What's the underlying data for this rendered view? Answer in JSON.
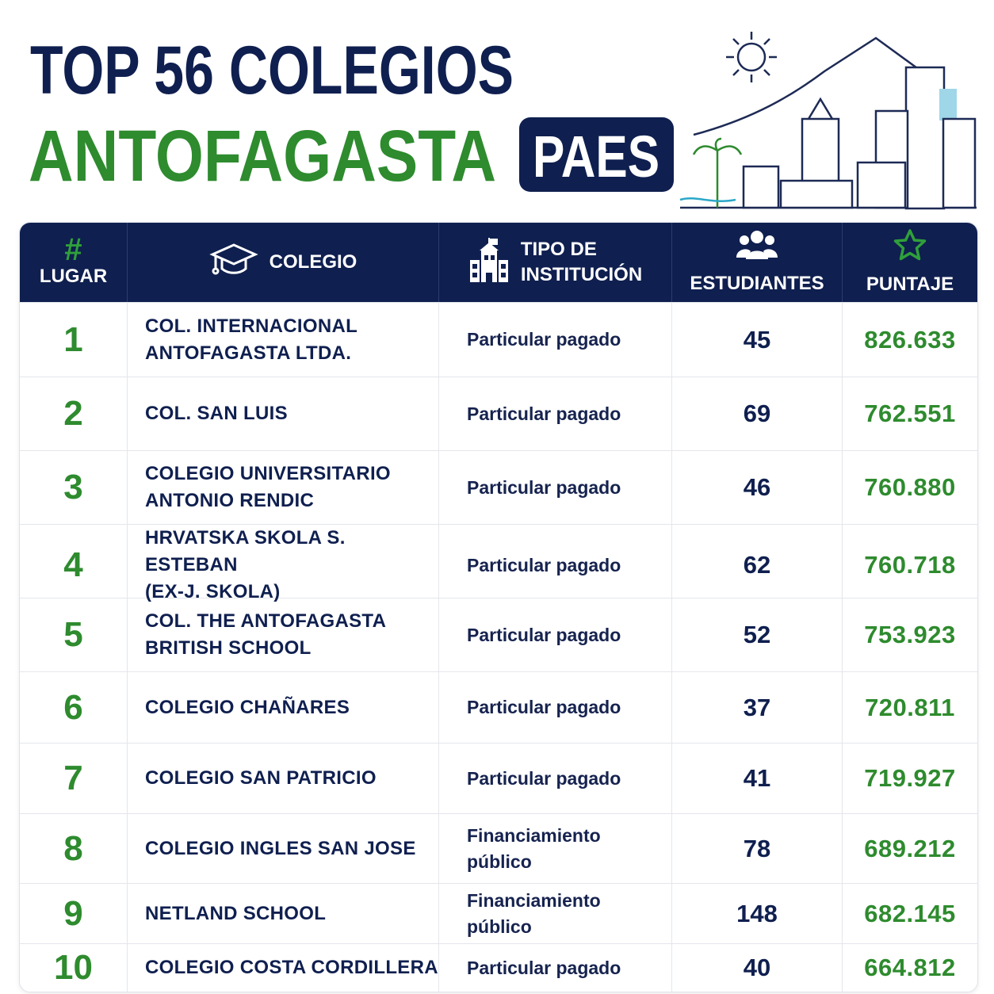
{
  "header": {
    "title": "TOP 56 COLEGIOS",
    "subtitle": "ANTOFAGASTA",
    "badge": "PAES"
  },
  "table": {
    "columns": [
      {
        "symbol": "#",
        "lines": [
          "LUGAR"
        ]
      },
      {
        "lines": [
          "COLEGIO"
        ]
      },
      {
        "lines": [
          "TIPO DE",
          "INSTITUCIÓN"
        ]
      },
      {
        "lines": [
          "ESTUDIANTES"
        ]
      },
      {
        "lines": [
          "PUNTAJE"
        ]
      }
    ],
    "rows": [
      {
        "place": 1,
        "school": [
          "COL. INTERNACIONAL",
          "ANTOFAGASTA LTDA."
        ],
        "type": [
          "Particular pagado"
        ],
        "students": 45,
        "score": "826.633"
      },
      {
        "place": 2,
        "school": [
          "COL. SAN LUIS"
        ],
        "type": [
          "Particular pagado"
        ],
        "students": 69,
        "score": "762.551"
      },
      {
        "place": 3,
        "school": [
          "COLEGIO UNIVERSITARIO",
          "ANTONIO RENDIC"
        ],
        "type": [
          "Particular pagado"
        ],
        "students": 46,
        "score": "760.880"
      },
      {
        "place": 4,
        "school": [
          "HRVATSKA SKOLA S. ESTEBAN",
          "(EX-J. SKOLA)"
        ],
        "type": [
          "Particular pagado"
        ],
        "students": 62,
        "score": "760.718"
      },
      {
        "place": 5,
        "school": [
          "COL. THE ANTOFAGASTA",
          "BRITISH SCHOOL"
        ],
        "type": [
          "Particular pagado"
        ],
        "students": 52,
        "score": "753.923"
      },
      {
        "place": 6,
        "school": [
          "COLEGIO CHAÑARES"
        ],
        "type": [
          "Particular pagado"
        ],
        "students": 37,
        "score": "720.811"
      },
      {
        "place": 7,
        "school": [
          "COLEGIO SAN PATRICIO"
        ],
        "type": [
          "Particular pagado"
        ],
        "students": 41,
        "score": "719.927"
      },
      {
        "place": 8,
        "school": [
          "COLEGIO INGLES SAN JOSE"
        ],
        "type": [
          "Financiamiento",
          "público"
        ],
        "students": 78,
        "score": "689.212"
      },
      {
        "place": 9,
        "school": [
          "NETLAND SCHOOL"
        ],
        "type": [
          "Financiamiento",
          "público"
        ],
        "students": 148,
        "score": "682.145"
      },
      {
        "place": 10,
        "school": [
          "COLEGIO COSTA CORDILLERA"
        ],
        "type": [
          "Particular pagado"
        ],
        "students": 40,
        "score": "664.812"
      }
    ]
  }
}
